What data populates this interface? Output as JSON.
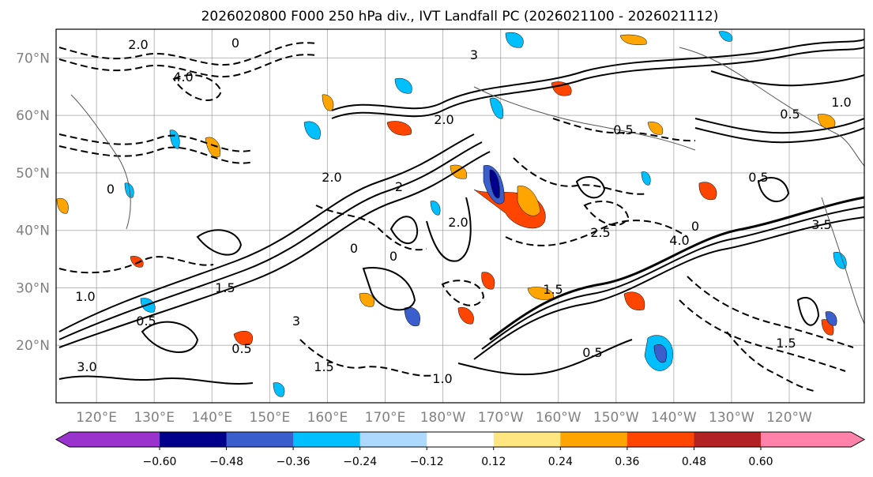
{
  "figure": {
    "title": "2026020800 F000 250 hPa div., IVT Landfall PC (2026021100 - 2026021112)"
  },
  "map": {
    "lat_labels": [
      "70°N",
      "60°N",
      "50°N",
      "40°N",
      "30°N",
      "20°N"
    ],
    "lon_labels": [
      "120°E",
      "130°E",
      "140°E",
      "150°E",
      "160°E",
      "170°E",
      "180°W",
      "170°W",
      "160°W",
      "150°W",
      "140°W",
      "130°W",
      "120°W"
    ],
    "lat_values": [
      70,
      60,
      50,
      40,
      30,
      20
    ],
    "lon_values": [
      120,
      130,
      140,
      150,
      160,
      170,
      180,
      190,
      200,
      210,
      220,
      230,
      240
    ],
    "lat_range": [
      10,
      75
    ],
    "lon_range": [
      113,
      253
    ],
    "contour_labels": [
      "2.0",
      "0",
      "3",
      "4.0",
      "2",
      "0",
      "2.0",
      "0.5",
      "1.5",
      "0.5",
      "2.0",
      "3",
      "1.0",
      "0",
      "0.5",
      "1.5",
      "1.0",
      "2.5",
      "0.5",
      "0",
      "1.5",
      "0.5",
      "1.0",
      "2.0",
      "3.0",
      "1.5",
      "0.5",
      "4.0",
      "0",
      "3.5"
    ],
    "colors": {
      "background": "#ffffff",
      "contour": "#000000",
      "coast": "#555555",
      "grid": "#808080"
    }
  },
  "colorbar": {
    "ticks": [
      "−0.60",
      "−0.48",
      "−0.36",
      "−0.24",
      "−0.12",
      "0.12",
      "0.24",
      "0.36",
      "0.48",
      "0.60"
    ],
    "tick_values": [
      -0.6,
      -0.48,
      -0.36,
      -0.24,
      -0.12,
      0.12,
      0.24,
      0.36,
      0.48,
      0.6
    ],
    "colors": [
      "#9a32cd",
      "#00008b",
      "#3a5fcd",
      "#00bfff",
      "#add8ff",
      "#ffffff",
      "#ffe680",
      "#ffa500",
      "#ff4500",
      "#b22222",
      "#ff82ab"
    ]
  }
}
